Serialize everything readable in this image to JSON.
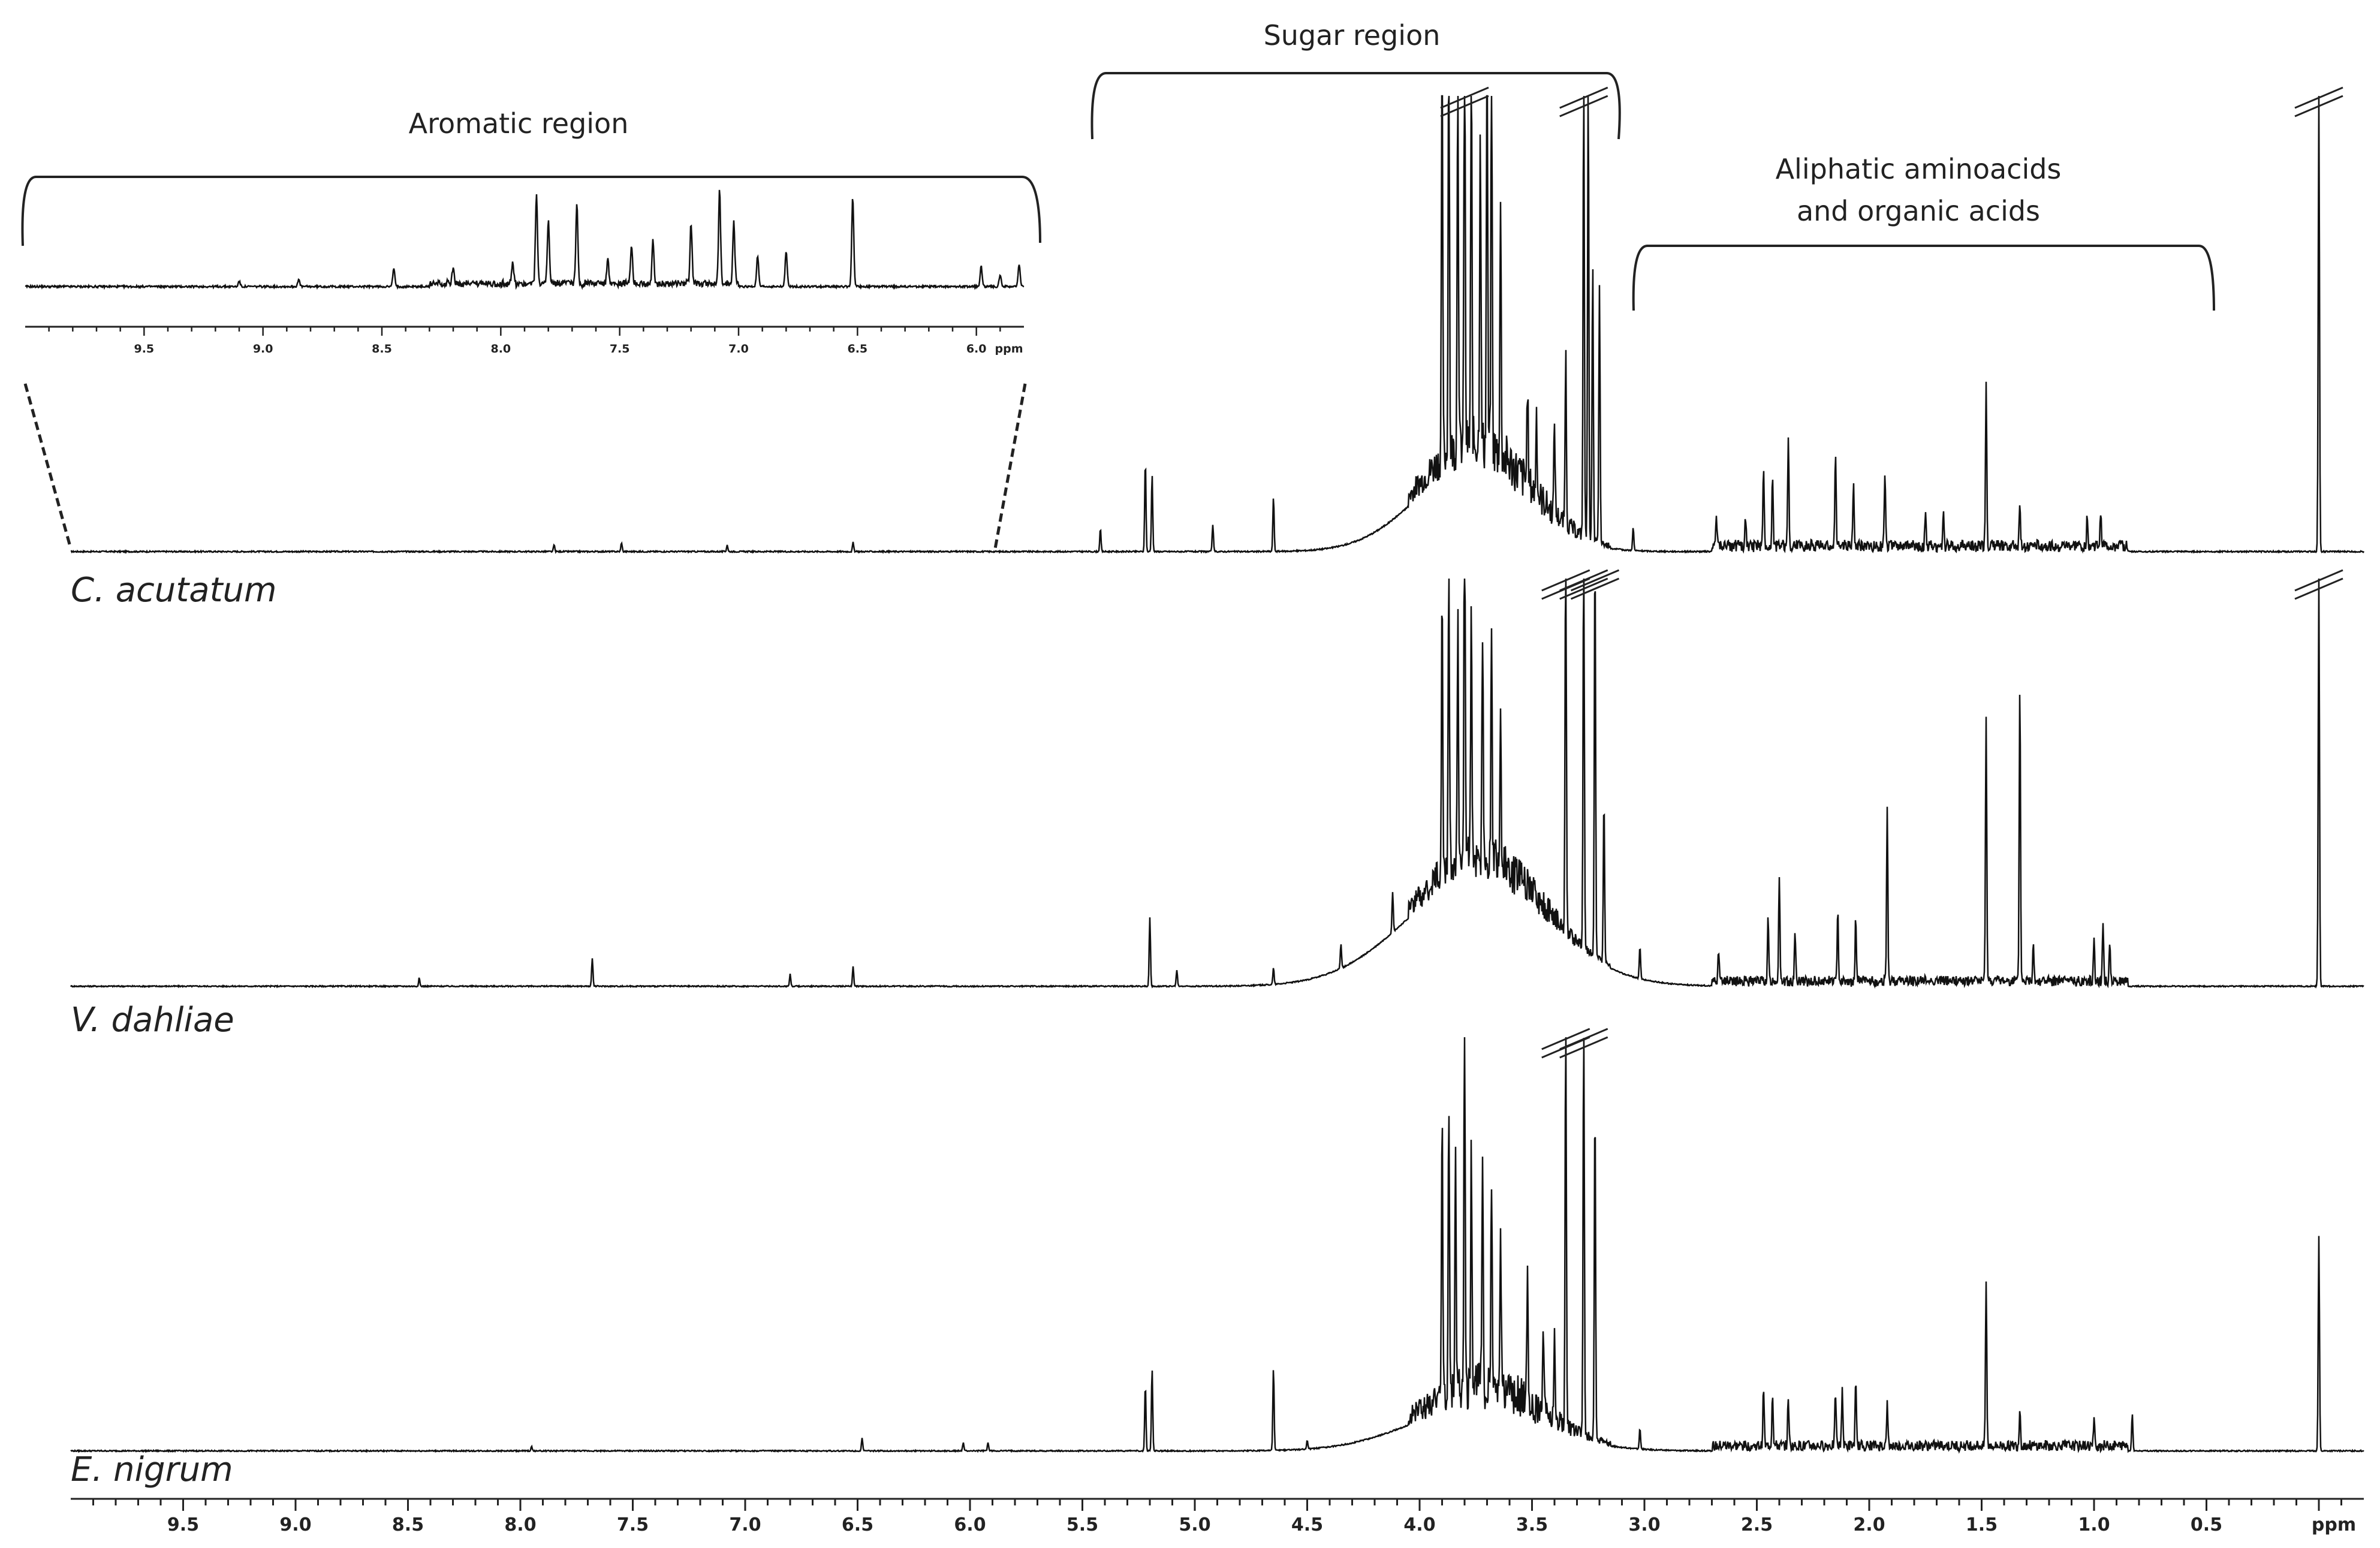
{
  "chart_data": {
    "type": "line",
    "x_axis": {
      "unit_label": "ppm",
      "reversed": true,
      "xlim": [
        10.0,
        -0.2
      ],
      "tick_labels": [
        "9.5",
        "9.0",
        "8.5",
        "8.0",
        "7.5",
        "7.0",
        "6.5",
        "6.0",
        "5.5",
        "5.0",
        "4.5",
        "4.0",
        "3.5",
        "3.0",
        "2.5",
        "2.0",
        "1.5",
        "1.0",
        "0.5"
      ]
    },
    "regions": [
      {
        "label": "Aromatic region",
        "range_ppm": [
          5.8,
          10.0
        ]
      },
      {
        "label": "Sugar region",
        "range_ppm": [
          3.1,
          5.6
        ]
      },
      {
        "label_lines": [
          "Aliphatic aminoacids",
          "and organic acids"
        ],
        "range_ppm": [
          0.5,
          3.1
        ]
      }
    ],
    "inset": {
      "shows": "Aromatic region",
      "range_ppm": [
        10.0,
        5.8
      ],
      "unit_label": "ppm",
      "tick_labels": [
        "9.5",
        "9.0",
        "8.5",
        "8.0",
        "7.5",
        "7.0",
        "6.5",
        "6.0"
      ],
      "peaks": [
        {
          "ppm": 7.85,
          "h": 0.9
        },
        {
          "ppm": 7.68,
          "h": 0.78
        },
        {
          "ppm": 7.8,
          "h": 0.62
        },
        {
          "ppm": 7.08,
          "h": 0.92
        },
        {
          "ppm": 7.2,
          "h": 0.6
        },
        {
          "ppm": 7.02,
          "h": 0.6
        },
        {
          "ppm": 6.52,
          "h": 0.88
        },
        {
          "ppm": 7.45,
          "h": 0.36
        },
        {
          "ppm": 7.36,
          "h": 0.42
        },
        {
          "ppm": 7.55,
          "h": 0.25
        },
        {
          "ppm": 6.92,
          "h": 0.3
        },
        {
          "ppm": 6.8,
          "h": 0.35
        },
        {
          "ppm": 8.45,
          "h": 0.18
        },
        {
          "ppm": 8.2,
          "h": 0.15
        },
        {
          "ppm": 7.95,
          "h": 0.2
        },
        {
          "ppm": 5.98,
          "h": 0.2
        },
        {
          "ppm": 5.82,
          "h": 0.22
        },
        {
          "ppm": 5.9,
          "h": 0.12
        },
        {
          "ppm": 8.85,
          "h": 0.07
        },
        {
          "ppm": 9.1,
          "h": 0.05
        }
      ]
    },
    "series": [
      {
        "name": "C. acutatum",
        "peaks": [
          {
            "ppm": 3.9,
            "h": 0.95
          },
          {
            "ppm": 3.87,
            "h": 0.98
          },
          {
            "ppm": 3.83,
            "h": 0.85
          },
          {
            "ppm": 3.8,
            "h": 1.0,
            "truncated": true
          },
          {
            "ppm": 3.77,
            "h": 0.85
          },
          {
            "ppm": 3.73,
            "h": 0.72
          },
          {
            "ppm": 3.7,
            "h": 0.9
          },
          {
            "ppm": 3.68,
            "h": 0.86
          },
          {
            "ppm": 3.64,
            "h": 0.55
          },
          {
            "ppm": 3.52,
            "h": 0.22
          },
          {
            "ppm": 3.48,
            "h": 0.18
          },
          {
            "ppm": 3.4,
            "h": 0.2
          },
          {
            "ppm": 3.35,
            "h": 0.38
          },
          {
            "ppm": 3.27,
            "h": 1.0,
            "truncated": true
          },
          {
            "ppm": 3.25,
            "h": 1.0
          },
          {
            "ppm": 3.23,
            "h": 0.6
          },
          {
            "ppm": 3.2,
            "h": 0.56
          },
          {
            "ppm": 5.22,
            "h": 0.2
          },
          {
            "ppm": 5.19,
            "h": 0.17
          },
          {
            "ppm": 5.42,
            "h": 0.05
          },
          {
            "ppm": 4.92,
            "h": 0.06
          },
          {
            "ppm": 4.65,
            "h": 0.12
          },
          {
            "ppm": 2.55,
            "h": 0.06
          },
          {
            "ppm": 2.47,
            "h": 0.17
          },
          {
            "ppm": 2.43,
            "h": 0.15
          },
          {
            "ppm": 2.36,
            "h": 0.24
          },
          {
            "ppm": 2.15,
            "h": 0.2
          },
          {
            "ppm": 2.07,
            "h": 0.13
          },
          {
            "ppm": 1.93,
            "h": 0.17
          },
          {
            "ppm": 1.75,
            "h": 0.07
          },
          {
            "ppm": 1.67,
            "h": 0.07
          },
          {
            "ppm": 1.48,
            "h": 0.36
          },
          {
            "ppm": 1.33,
            "h": 0.1
          },
          {
            "ppm": 1.03,
            "h": 0.07
          },
          {
            "ppm": 0.97,
            "h": 0.08
          },
          {
            "ppm": 0.0,
            "h": 1.0,
            "truncated": true
          },
          {
            "ppm": 7.55,
            "h": 0.02
          },
          {
            "ppm": 7.08,
            "h": 0.015
          },
          {
            "ppm": 6.52,
            "h": 0.02
          },
          {
            "ppm": 7.85,
            "h": 0.015
          },
          {
            "ppm": 3.05,
            "h": 0.05
          },
          {
            "ppm": 2.68,
            "h": 0.06
          }
        ],
        "hump": {
          "center_ppm": 3.78,
          "width_ppm": 0.35,
          "h": 0.18
        }
      },
      {
        "name": "V. dahliae",
        "peaks": [
          {
            "ppm": 3.9,
            "h": 0.7
          },
          {
            "ppm": 3.87,
            "h": 0.75
          },
          {
            "ppm": 3.83,
            "h": 0.6
          },
          {
            "ppm": 3.8,
            "h": 0.98
          },
          {
            "ppm": 3.77,
            "h": 0.6
          },
          {
            "ppm": 3.72,
            "h": 0.55
          },
          {
            "ppm": 3.68,
            "h": 0.52
          },
          {
            "ppm": 3.64,
            "h": 0.36
          },
          {
            "ppm": 3.35,
            "h": 1.0,
            "truncated": true
          },
          {
            "ppm": 3.27,
            "h": 1.0,
            "truncated": true
          },
          {
            "ppm": 3.22,
            "h": 1.0,
            "truncated": true
          },
          {
            "ppm": 3.18,
            "h": 0.4
          },
          {
            "ppm": 5.2,
            "h": 0.17
          },
          {
            "ppm": 5.08,
            "h": 0.04
          },
          {
            "ppm": 4.65,
            "h": 0.04
          },
          {
            "ppm": 4.35,
            "h": 0.06
          },
          {
            "ppm": 4.12,
            "h": 0.1
          },
          {
            "ppm": 2.4,
            "h": 0.26
          },
          {
            "ppm": 2.45,
            "h": 0.15
          },
          {
            "ppm": 2.33,
            "h": 0.13
          },
          {
            "ppm": 2.14,
            "h": 0.18
          },
          {
            "ppm": 2.06,
            "h": 0.16
          },
          {
            "ppm": 1.92,
            "h": 0.42
          },
          {
            "ppm": 1.48,
            "h": 0.65
          },
          {
            "ppm": 1.33,
            "h": 0.73
          },
          {
            "ppm": 1.27,
            "h": 0.1
          },
          {
            "ppm": 1.0,
            "h": 0.11
          },
          {
            "ppm": 0.96,
            "h": 0.14
          },
          {
            "ppm": 0.93,
            "h": 0.1
          },
          {
            "ppm": 0.0,
            "h": 1.0,
            "truncated": true
          },
          {
            "ppm": 7.68,
            "h": 0.07
          },
          {
            "ppm": 6.52,
            "h": 0.05
          },
          {
            "ppm": 6.8,
            "h": 0.03
          },
          {
            "ppm": 8.45,
            "h": 0.02
          },
          {
            "ppm": 3.02,
            "h": 0.08
          },
          {
            "ppm": 2.67,
            "h": 0.08
          }
        ],
        "hump": {
          "center_ppm": 3.75,
          "width_ppm": 0.45,
          "h": 0.26
        }
      },
      {
        "name": "E. nigrum",
        "peaks": [
          {
            "ppm": 3.9,
            "h": 0.68
          },
          {
            "ppm": 3.87,
            "h": 0.72
          },
          {
            "ppm": 3.84,
            "h": 0.6
          },
          {
            "ppm": 3.8,
            "h": 0.94
          },
          {
            "ppm": 3.77,
            "h": 0.58
          },
          {
            "ppm": 3.72,
            "h": 0.5
          },
          {
            "ppm": 3.68,
            "h": 0.48
          },
          {
            "ppm": 3.64,
            "h": 0.36
          },
          {
            "ppm": 3.52,
            "h": 0.3
          },
          {
            "ppm": 3.45,
            "h": 0.22
          },
          {
            "ppm": 3.4,
            "h": 0.2
          },
          {
            "ppm": 3.35,
            "h": 1.0,
            "truncated": true
          },
          {
            "ppm": 3.27,
            "h": 1.0,
            "truncated": true
          },
          {
            "ppm": 3.22,
            "h": 0.82
          },
          {
            "ppm": 5.22,
            "h": 0.16
          },
          {
            "ppm": 5.19,
            "h": 0.2
          },
          {
            "ppm": 4.65,
            "h": 0.2
          },
          {
            "ppm": 4.5,
            "h": 0.02
          },
          {
            "ppm": 2.47,
            "h": 0.14
          },
          {
            "ppm": 2.43,
            "h": 0.13
          },
          {
            "ppm": 2.36,
            "h": 0.12
          },
          {
            "ppm": 2.15,
            "h": 0.13
          },
          {
            "ppm": 2.12,
            "h": 0.14
          },
          {
            "ppm": 2.06,
            "h": 0.15
          },
          {
            "ppm": 1.92,
            "h": 0.1
          },
          {
            "ppm": 1.48,
            "h": 0.4
          },
          {
            "ppm": 1.33,
            "h": 0.09
          },
          {
            "ppm": 1.0,
            "h": 0.06
          },
          {
            "ppm": 0.83,
            "h": 0.09
          },
          {
            "ppm": 0.0,
            "h": 0.52
          },
          {
            "ppm": 6.48,
            "h": 0.03
          },
          {
            "ppm": 6.03,
            "h": 0.02
          },
          {
            "ppm": 5.92,
            "h": 0.02
          },
          {
            "ppm": 7.95,
            "h": 0.01
          },
          {
            "ppm": 3.02,
            "h": 0.05
          }
        ],
        "hump": {
          "center_ppm": 3.76,
          "width_ppm": 0.42,
          "h": 0.1
        }
      }
    ]
  }
}
